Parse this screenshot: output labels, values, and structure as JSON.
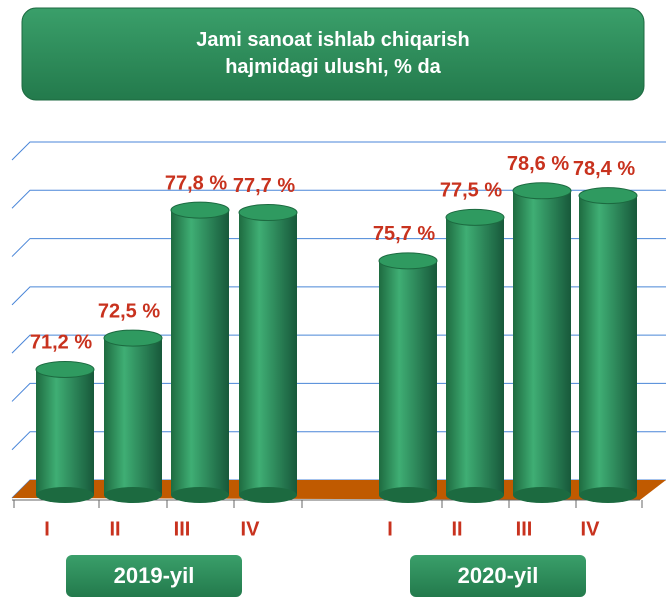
{
  "chart_data": {
    "type": "bar",
    "title": "Jami sanoat ishlab chiqarish\nhajmidagi ulushi, % da",
    "categories": [
      "I",
      "II",
      "III",
      "IV",
      "I",
      "II",
      "III",
      "IV"
    ],
    "groups": [
      "2019-yil",
      "2020-yil"
    ],
    "values": [
      71.2,
      72.5,
      77.8,
      77.7,
      75.7,
      77.5,
      78.6,
      78.4
    ],
    "value_labels": [
      "71,2 %",
      "72,5 %",
      "77,8 %",
      "77,7 %",
      "75,7 %",
      "77,5 %",
      "78,6 %",
      "78,4 %"
    ],
    "color": "#2e8b57",
    "ylim": [
      66,
      80
    ],
    "yticks": [
      66,
      68,
      70,
      72,
      74,
      76,
      78,
      80
    ],
    "grid": true
  }
}
